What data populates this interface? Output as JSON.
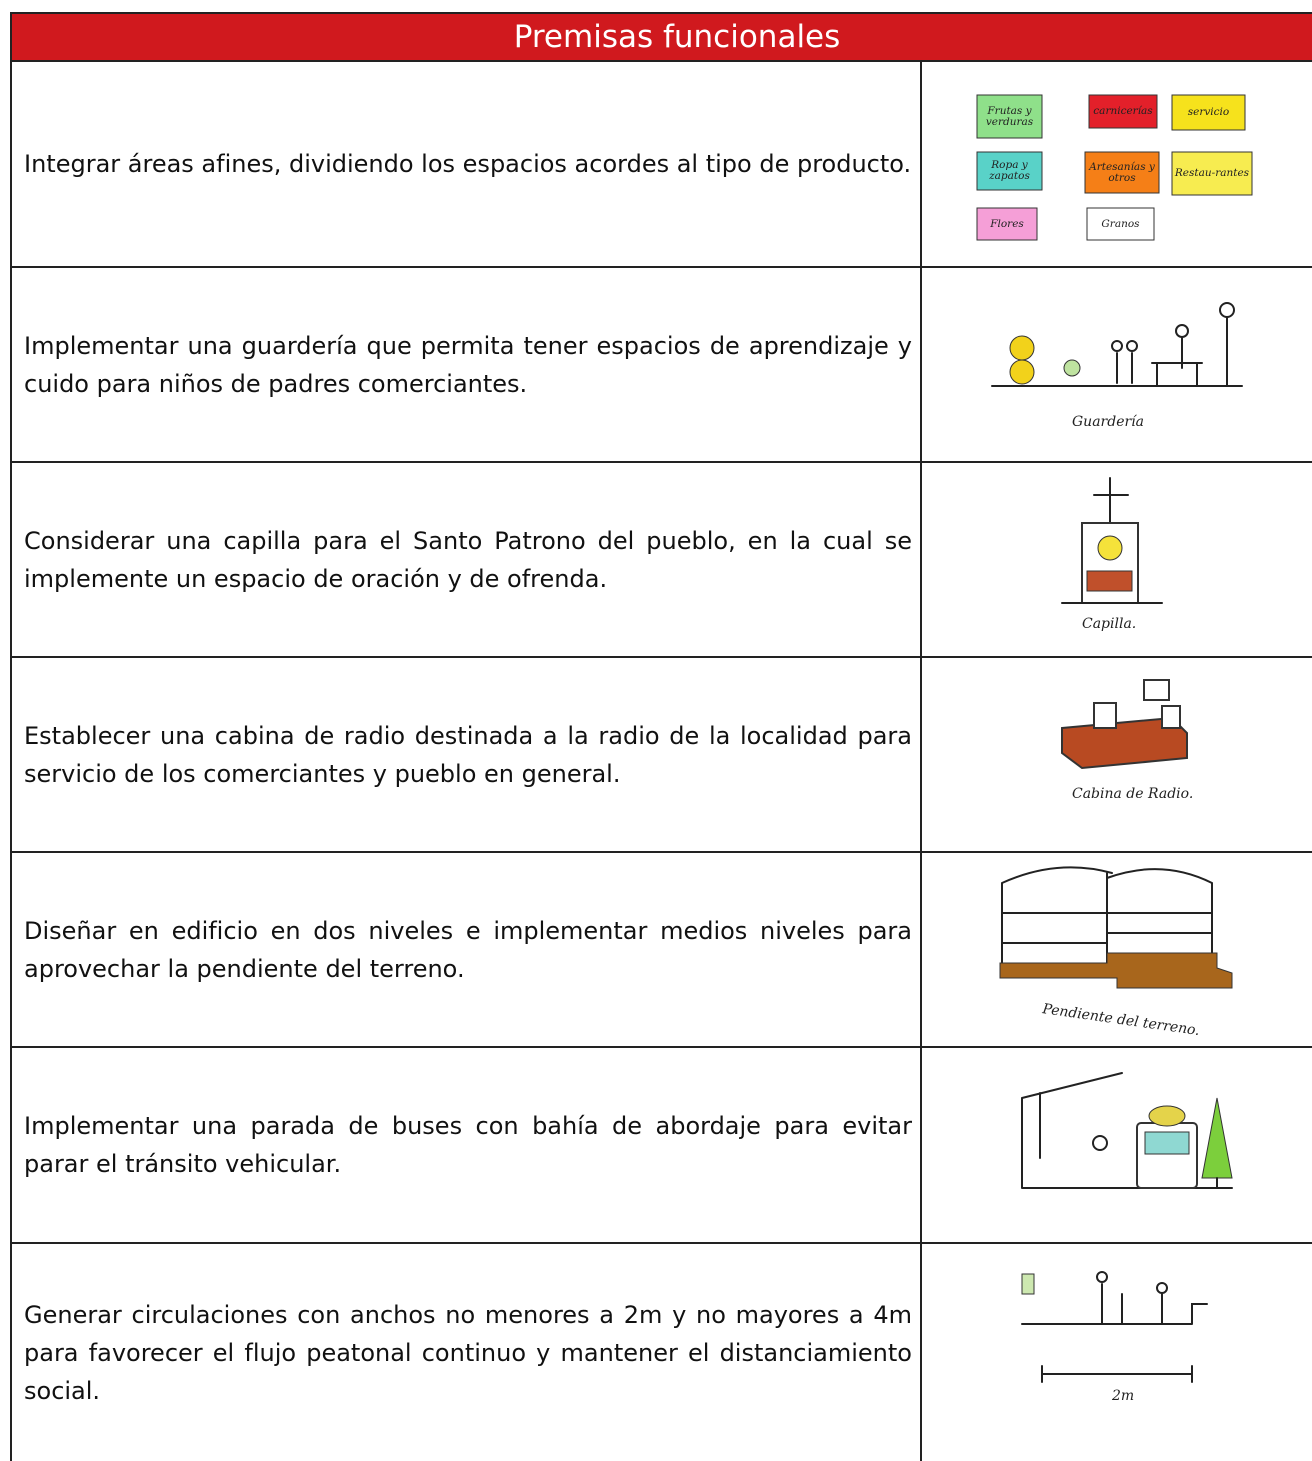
{
  "header": {
    "title": "Premisas funcionales"
  },
  "table": {
    "rows": [
      {
        "text": "Integrar áreas afines, dividiendo los espacios acordes al tipo de producto.",
        "sketch_labels": [
          "Frutas y verduras",
          "carnicerías",
          "servicio",
          "Ropa y zapatos",
          "Artesanías y otros",
          "Restau-rantes",
          "Flores",
          "Granos"
        ]
      },
      {
        "text": "Implementar una guardería que permita tener espacios de aprendizaje y cuido para niños de padres comerciantes.",
        "sketch_labels": [
          "Guardería"
        ]
      },
      {
        "text": "Considerar una capilla para el Santo Patrono del pueblo, en la cual se implemente un espacio de oración y de ofrenda.",
        "sketch_labels": [
          "Capilla."
        ]
      },
      {
        "text": "Establecer una cabina de radio destinada a la radio de la localidad para servicio de los comerciantes y pueblo en general.",
        "sketch_labels": [
          "Cabina de Radio."
        ]
      },
      {
        "text": "Diseñar en edificio en dos niveles e implementar medios niveles para aprovechar la pendiente del terreno.",
        "sketch_labels": [
          "Pendiente del terreno."
        ]
      },
      {
        "text": "Implementar una parada de buses con bahía de abordaje para evitar parar el tránsito vehicular.",
        "sketch_labels": []
      },
      {
        "text": "Generar circulaciones con anchos no menores a 2m y no mayores a 4m para favorecer el flujo peatonal continuo y mantener el distanciamiento social.",
        "sketch_labels": [
          "2m"
        ]
      }
    ]
  }
}
